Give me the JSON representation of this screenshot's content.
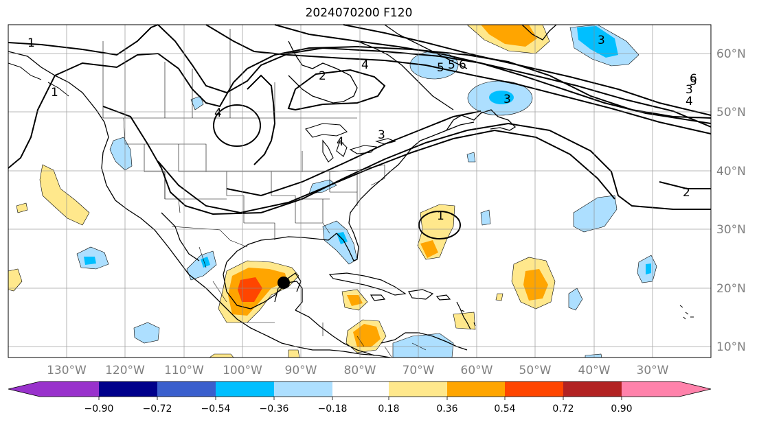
{
  "title": "2024070200 F120",
  "map": {
    "lon_ticks": [
      "130°W",
      "120°W",
      "110°W",
      "100°W",
      "90°W",
      "80°W",
      "70°W",
      "60°W",
      "50°W",
      "40°W",
      "30°W"
    ],
    "lat_ticks": [
      "60°N",
      "50°N",
      "40°N",
      "30°N",
      "20°N",
      "10°N"
    ],
    "contour_labels": [
      "1",
      "1",
      "2",
      "3",
      "4",
      "4",
      "5",
      "5",
      "6",
      "3",
      "3",
      "2",
      "1",
      "3",
      "4",
      "5",
      "6",
      "4"
    ],
    "marker": "black-dot"
  },
  "colorbar": {
    "ticks": [
      "−0.90",
      "−0.72",
      "−0.54",
      "−0.36",
      "−0.18",
      "0.18",
      "0.36",
      "0.54",
      "0.72",
      "0.90"
    ],
    "colors": [
      "#9932CC",
      "#00008B",
      "#3A5FCD",
      "#00BFFF",
      "#ADDFFF",
      "#FFFFFF",
      "#FFE88C",
      "#FFA500",
      "#FF4500",
      "#B22222",
      "#FF82AB"
    ]
  }
}
